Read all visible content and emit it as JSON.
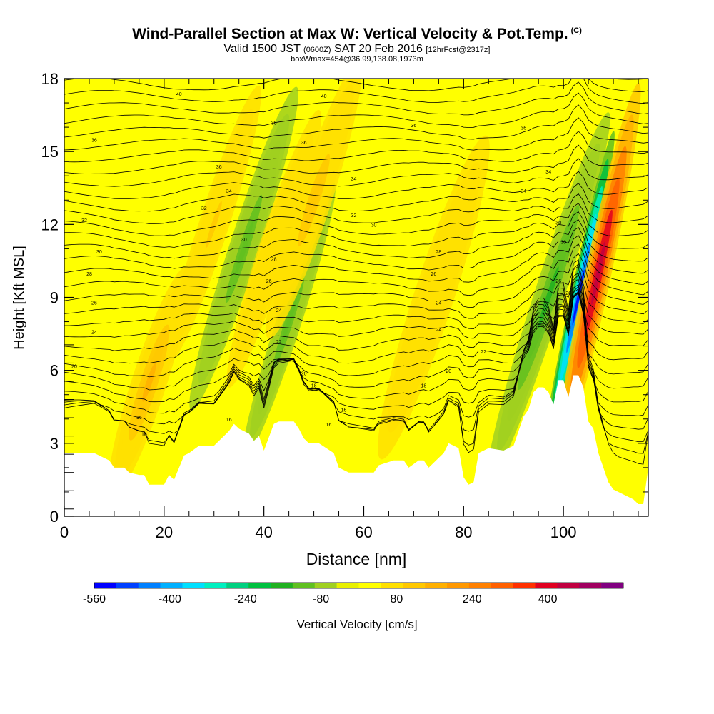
{
  "header": {
    "title": "Wind-Parallel Section at Max W: Vertical Velocity & Pot.Temp.",
    "copyright": "(C)",
    "valid_prefix": "Valid 1500 JST",
    "valid_utc": "(0600Z)",
    "valid_date": "SAT 20 Feb 2016",
    "forecast_tag": "[12hrFcst@2317z]",
    "box_info": "boxWmax=454@36.99,138.08,1973m"
  },
  "chart_data": {
    "type": "heatmap",
    "xlabel": "Distance [nm]",
    "ylabel": "Height [Kft MSL]",
    "xlim": [
      0,
      117
    ],
    "ylim": [
      0,
      18
    ],
    "xticks": [
      0,
      20,
      40,
      60,
      80,
      100
    ],
    "yticks": [
      0,
      3,
      6,
      9,
      12,
      15,
      18
    ],
    "colorbar": {
      "label": "Vertical Velocity [cm/s]",
      "range": [
        -560,
        560
      ],
      "ticks": [
        -560,
        -400,
        -240,
        -80,
        80,
        240,
        400
      ],
      "colors": [
        "#0000ff",
        "#0040ff",
        "#0080ff",
        "#00b0ff",
        "#00e0ff",
        "#00f0c0",
        "#00d080",
        "#00c040",
        "#20b020",
        "#60c020",
        "#a0d020",
        "#e8f000",
        "#ffff00",
        "#ffe000",
        "#ffc800",
        "#ffb000",
        "#ff9800",
        "#ff8000",
        "#ff6000",
        "#ff3000",
        "#e00020",
        "#c00040",
        "#a00060",
        "#800080"
      ]
    },
    "terrain": [
      [
        0,
        2.6
      ],
      [
        3,
        2.6
      ],
      [
        6,
        2.6
      ],
      [
        9,
        2.3
      ],
      [
        10,
        2.0
      ],
      [
        12,
        2.0
      ],
      [
        13,
        1.8
      ],
      [
        15,
        1.7
      ],
      [
        16,
        1.7
      ],
      [
        17,
        1.3
      ],
      [
        20,
        1.3
      ],
      [
        21,
        1.7
      ],
      [
        22,
        1.5
      ],
      [
        24,
        2.5
      ],
      [
        25,
        2.6
      ],
      [
        27,
        2.9
      ],
      [
        30,
        2.9
      ],
      [
        33,
        3.5
      ],
      [
        34,
        3.8
      ],
      [
        35,
        3.6
      ],
      [
        37,
        3.4
      ],
      [
        38,
        3.1
      ],
      [
        39,
        3.3
      ],
      [
        40,
        2.7
      ],
      [
        42,
        3.8
      ],
      [
        43,
        3.9
      ],
      [
        46,
        3.9
      ],
      [
        47,
        3.6
      ],
      [
        48,
        3.2
      ],
      [
        49,
        3.0
      ],
      [
        51,
        3.0
      ],
      [
        54,
        2.6
      ],
      [
        55,
        2.0
      ],
      [
        57,
        1.8
      ],
      [
        62,
        1.8
      ],
      [
        63,
        2.1
      ],
      [
        66,
        2.3
      ],
      [
        68,
        2.3
      ],
      [
        69,
        2.0
      ],
      [
        71,
        2.3
      ],
      [
        72,
        2.3
      ],
      [
        73,
        2.0
      ],
      [
        75,
        2.4
      ],
      [
        76,
        2.6
      ],
      [
        77,
        3.0
      ],
      [
        79,
        2.8
      ],
      [
        80,
        1.6
      ],
      [
        81,
        1.3
      ],
      [
        82,
        1.4
      ],
      [
        83,
        2.6
      ],
      [
        85,
        2.8
      ],
      [
        88,
        2.7
      ],
      [
        90,
        2.9
      ],
      [
        92,
        4.1
      ],
      [
        93,
        4.4
      ],
      [
        94,
        5.1
      ],
      [
        95,
        5.3
      ],
      [
        96,
        5.3
      ],
      [
        97,
        5.1
      ],
      [
        98,
        4.6
      ],
      [
        99,
        5.6
      ],
      [
        100,
        5.6
      ],
      [
        101,
        4.9
      ],
      [
        102,
        5.8
      ],
      [
        103,
        5.8
      ],
      [
        104,
        5.3
      ],
      [
        105,
        3.9
      ],
      [
        106,
        3.6
      ],
      [
        107,
        2.6
      ],
      [
        108,
        2.0
      ],
      [
        109,
        1.4
      ],
      [
        110,
        1.1
      ],
      [
        112,
        0.9
      ],
      [
        114,
        0.7
      ],
      [
        115,
        0.5
      ],
      [
        116,
        0.5
      ],
      [
        117,
        2.0
      ]
    ],
    "vertical_velocity_features": [
      {
        "x": 17,
        "z": 5.5,
        "w": 160
      },
      {
        "x": 30,
        "z": 12.0,
        "w": 100
      },
      {
        "x": 36,
        "z": 11.0,
        "w": -120
      },
      {
        "x": 42,
        "z": 11.0,
        "w": 90
      },
      {
        "x": 45,
        "z": 8.0,
        "w": -110
      },
      {
        "x": 50,
        "z": 13.0,
        "w": 110
      },
      {
        "x": 74,
        "z": 9.0,
        "w": 60
      },
      {
        "x": 97,
        "z": 9.0,
        "w": -150
      },
      {
        "x": 103,
        "z": 9.0,
        "w": -520
      },
      {
        "x": 107,
        "z": 10.0,
        "w": 454
      }
    ],
    "contour_labels": [
      {
        "text": "40",
        "x": 23,
        "z": 17.3
      },
      {
        "text": "40",
        "x": 52,
        "z": 17.2
      },
      {
        "text": "36",
        "x": 42,
        "z": 16.1
      },
      {
        "text": "36",
        "x": 70,
        "z": 16.0
      },
      {
        "text": "36",
        "x": 92,
        "z": 15.9
      },
      {
        "text": "36",
        "x": 6,
        "z": 15.4
      },
      {
        "text": "36",
        "x": 48,
        "z": 15.3
      },
      {
        "text": "36",
        "x": 31,
        "z": 14.3
      },
      {
        "text": "34",
        "x": 97,
        "z": 14.1
      },
      {
        "text": "34",
        "x": 58,
        "z": 13.8
      },
      {
        "text": "34",
        "x": 33,
        "z": 13.3
      },
      {
        "text": "34",
        "x": 92,
        "z": 13.3
      },
      {
        "text": "32",
        "x": 28,
        "z": 12.6
      },
      {
        "text": "32",
        "x": 58,
        "z": 12.3
      },
      {
        "text": "32",
        "x": 4,
        "z": 12.1
      },
      {
        "text": "30",
        "x": 62,
        "z": 11.9
      },
      {
        "text": "30",
        "x": 99,
        "z": 12.0
      },
      {
        "text": "30",
        "x": 36,
        "z": 11.3
      },
      {
        "text": "30",
        "x": 100,
        "z": 11.2
      },
      {
        "text": "30",
        "x": 7,
        "z": 10.8
      },
      {
        "text": "28",
        "x": 75,
        "z": 10.8
      },
      {
        "text": "28",
        "x": 42,
        "z": 10.5
      },
      {
        "text": "28",
        "x": 5,
        "z": 9.9
      },
      {
        "text": "26",
        "x": 74,
        "z": 9.9
      },
      {
        "text": "26",
        "x": 41,
        "z": 9.6
      },
      {
        "text": "26",
        "x": 99,
        "z": 9.6
      },
      {
        "text": "26",
        "x": 101,
        "z": 9.1
      },
      {
        "text": "26",
        "x": 6,
        "z": 8.7
      },
      {
        "text": "24",
        "x": 75,
        "z": 8.7
      },
      {
        "text": "24",
        "x": 43,
        "z": 8.4
      },
      {
        "text": "24",
        "x": 75,
        "z": 7.6
      },
      {
        "text": "24",
        "x": 101,
        "z": 7.7
      },
      {
        "text": "24",
        "x": 6,
        "z": 7.5
      },
      {
        "text": "22",
        "x": 43,
        "z": 7.1
      },
      {
        "text": "22",
        "x": 84,
        "z": 6.7
      },
      {
        "text": "20",
        "x": 2,
        "z": 6.1
      },
      {
        "text": "20",
        "x": 77,
        "z": 5.9
      },
      {
        "text": "20",
        "x": 48,
        "z": 5.8
      },
      {
        "text": "18",
        "x": 50,
        "z": 5.3
      },
      {
        "text": "18",
        "x": 72,
        "z": 5.3
      },
      {
        "text": "16",
        "x": 56,
        "z": 4.3
      },
      {
        "text": "16",
        "x": 33,
        "z": 3.9
      },
      {
        "text": "16",
        "x": 15,
        "z": 4.0
      },
      {
        "text": "16",
        "x": 53,
        "z": 3.7
      },
      {
        "text": "16",
        "x": 16,
        "z": 3.3
      }
    ]
  }
}
